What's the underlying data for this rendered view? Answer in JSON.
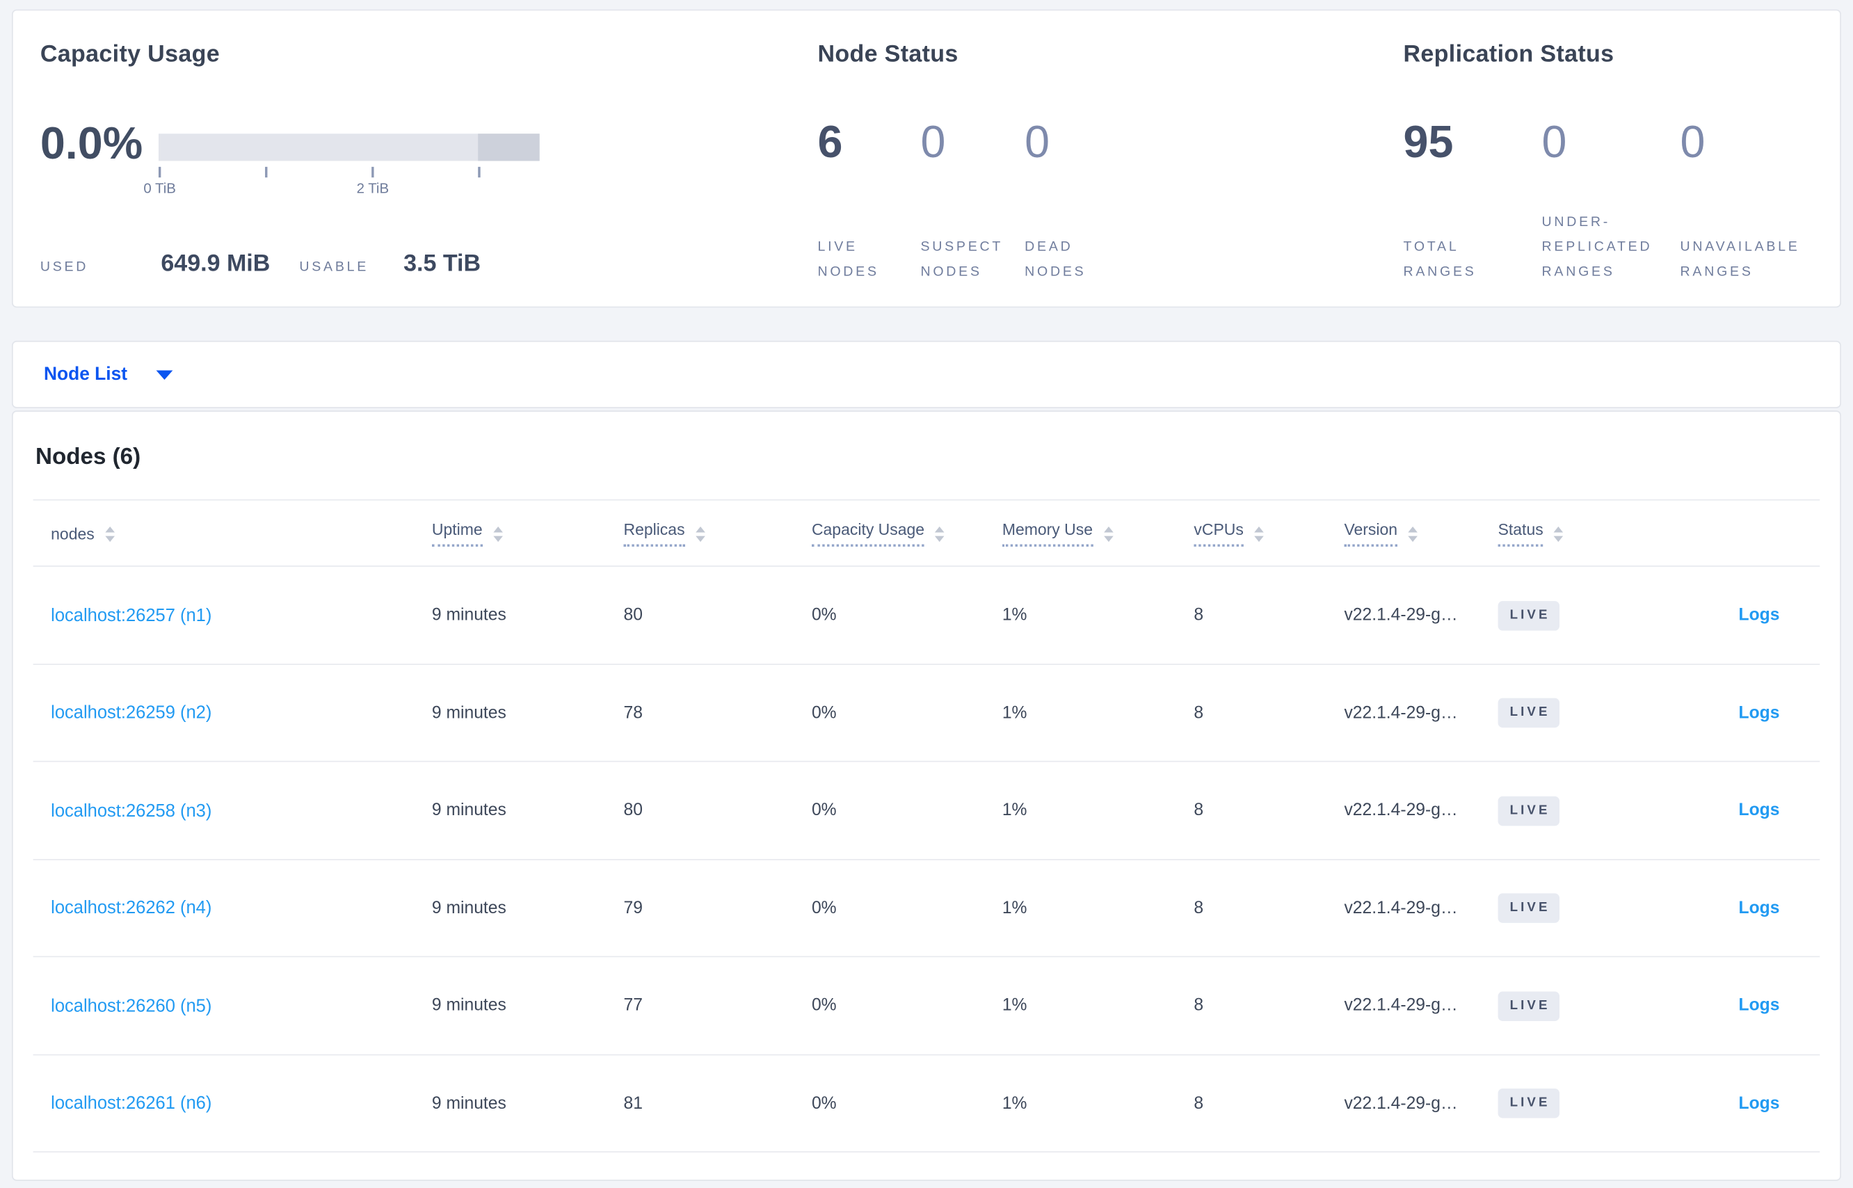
{
  "summary": {
    "capacity": {
      "title": "Capacity Usage",
      "percent": "0.0%",
      "ticks": [
        "0 TiB",
        "2 TiB"
      ],
      "used_label": "USED",
      "used_value": "649.9 MiB",
      "usable_label": "USABLE",
      "usable_value": "3.5 TiB"
    },
    "nodes": {
      "title": "Node Status",
      "items": [
        {
          "value": "6",
          "label_lines": [
            "LIVE",
            "NODES"
          ]
        },
        {
          "value": "0",
          "label_lines": [
            "SUSPECT",
            "NODES"
          ]
        },
        {
          "value": "0",
          "label_lines": [
            "DEAD",
            "NODES"
          ]
        }
      ]
    },
    "replication": {
      "title": "Replication Status",
      "items": [
        {
          "value": "95",
          "label_lines": [
            "TOTAL",
            "RANGES"
          ]
        },
        {
          "value": "0",
          "label_lines": [
            "UNDER-",
            "REPLICATED",
            "RANGES"
          ]
        },
        {
          "value": "0",
          "label_lines": [
            "UNAVAILABLE",
            "RANGES"
          ]
        }
      ]
    }
  },
  "view_selector": {
    "label": "Node List",
    "icon": "caret-down"
  },
  "table": {
    "title": "Nodes (6)",
    "headers": [
      {
        "label": "nodes"
      },
      {
        "label": "Uptime"
      },
      {
        "label": "Replicas"
      },
      {
        "label": "Capacity Usage"
      },
      {
        "label": "Memory Use"
      },
      {
        "label": "vCPUs"
      },
      {
        "label": "Version"
      },
      {
        "label": "Status"
      }
    ],
    "rows": [
      {
        "address": "localhost:26257 (n1)",
        "uptime": "9 minutes",
        "replicas": "80",
        "capacity": "0%",
        "memory": "1%",
        "vcpus": "8",
        "version": "v22.1.4-29-g…",
        "status": "LIVE",
        "logs": "Logs"
      },
      {
        "address": "localhost:26259 (n2)",
        "uptime": "9 minutes",
        "replicas": "78",
        "capacity": "0%",
        "memory": "1%",
        "vcpus": "8",
        "version": "v22.1.4-29-g…",
        "status": "LIVE",
        "logs": "Logs"
      },
      {
        "address": "localhost:26258 (n3)",
        "uptime": "9 minutes",
        "replicas": "80",
        "capacity": "0%",
        "memory": "1%",
        "vcpus": "8",
        "version": "v22.1.4-29-g…",
        "status": "LIVE",
        "logs": "Logs"
      },
      {
        "address": "localhost:26262 (n4)",
        "uptime": "9 minutes",
        "replicas": "79",
        "capacity": "0%",
        "memory": "1%",
        "vcpus": "8",
        "version": "v22.1.4-29-g…",
        "status": "LIVE",
        "logs": "Logs"
      },
      {
        "address": "localhost:26260 (n5)",
        "uptime": "9 minutes",
        "replicas": "77",
        "capacity": "0%",
        "memory": "1%",
        "vcpus": "8",
        "version": "v22.1.4-29-g…",
        "status": "LIVE",
        "logs": "Logs"
      },
      {
        "address": "localhost:26261 (n6)",
        "uptime": "9 minutes",
        "replicas": "81",
        "capacity": "0%",
        "memory": "1%",
        "vcpus": "8",
        "version": "v22.1.4-29-g…",
        "status": "LIVE",
        "logs": "Logs"
      }
    ]
  },
  "colors": {
    "selector_blue": "#0b55f0",
    "link_blue": "#219af2",
    "badge_background": "#e8ebf2",
    "bar_light": "#e3e5ec",
    "bar_dark": "#cdd1db",
    "page_background": "#f2f4f8"
  }
}
